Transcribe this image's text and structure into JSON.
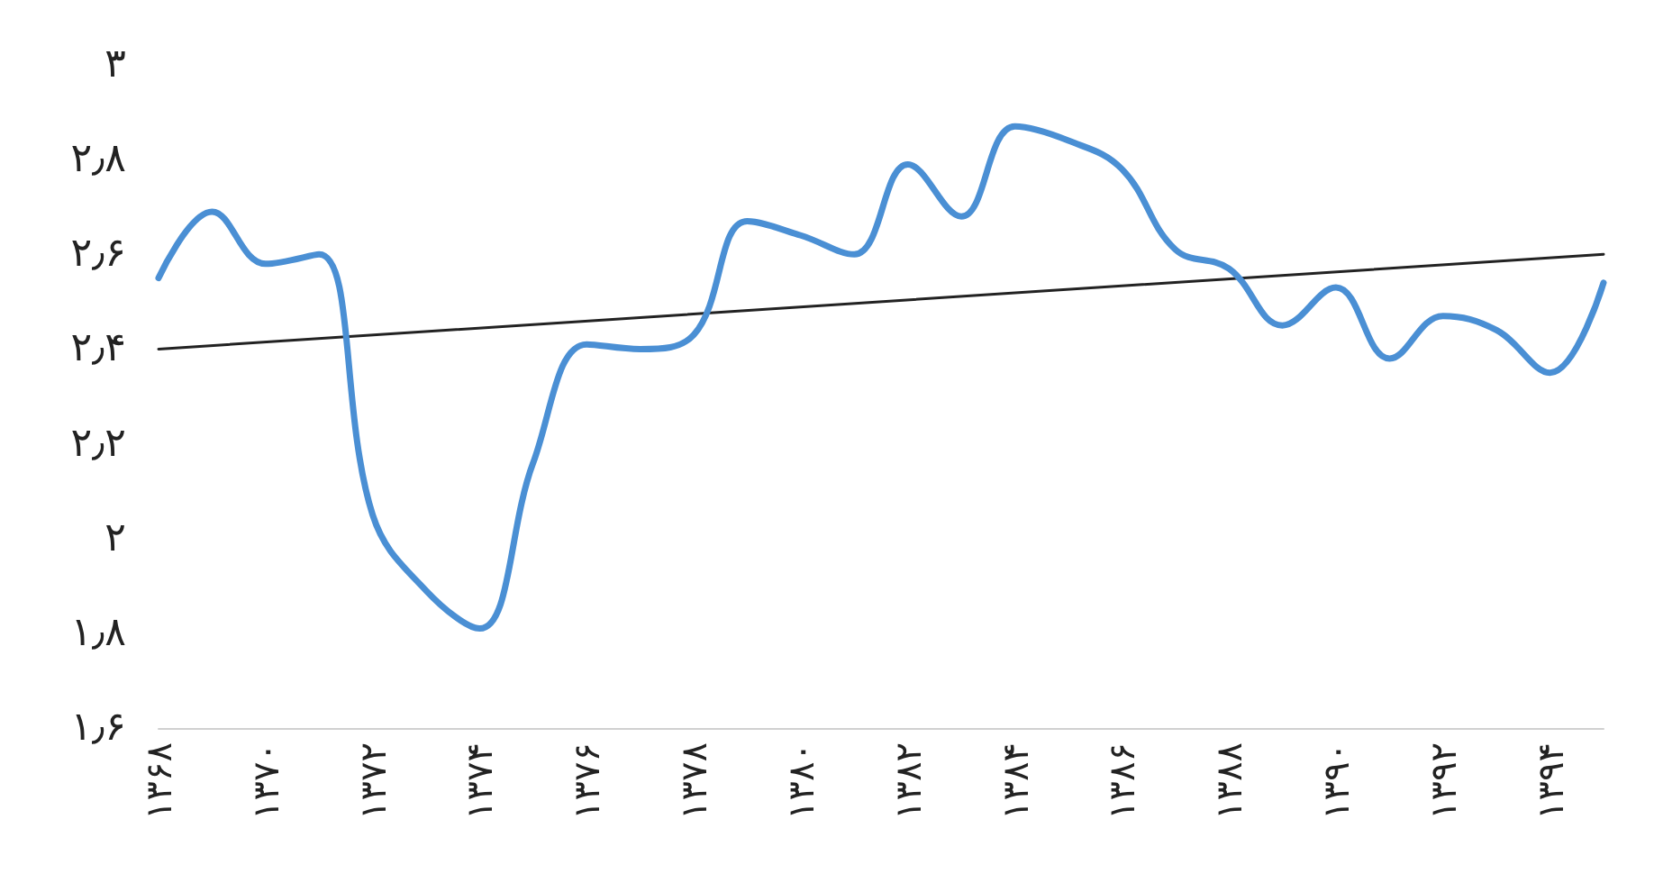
{
  "chart_data": {
    "type": "line",
    "x": [
      1368,
      1369,
      1370,
      1371,
      1372,
      1373,
      1374,
      1375,
      1376,
      1377,
      1378,
      1379,
      1380,
      1381,
      1382,
      1383,
      1384,
      1385,
      1386,
      1387,
      1388,
      1389,
      1390,
      1391,
      1392,
      1393,
      1394,
      1395
    ],
    "series": [
      {
        "color": "#4a8fd4",
        "values": [
          2.55,
          2.69,
          2.58,
          2.6,
          2.05,
          1.89,
          1.81,
          2.16,
          2.41,
          2.4,
          2.43,
          2.67,
          2.64,
          2.6,
          2.79,
          2.68,
          2.87,
          2.84,
          2.78,
          2.61,
          2.57,
          2.45,
          2.53,
          2.38,
          2.47,
          2.44,
          2.35,
          2.54
        ]
      },
      {
        "type": "line",
        "color": "#222222",
        "x": [
          1368,
          1395
        ],
        "values": [
          2.4,
          2.6
        ]
      }
    ],
    "xlim": [
      1368,
      1395
    ],
    "xticks": [
      {
        "value": 1368,
        "label": "۱۳۶۸"
      },
      {
        "value": 1370,
        "label": "۱۳۷۰"
      },
      {
        "value": 1372,
        "label": "۱۳۷۲"
      },
      {
        "value": 1374,
        "label": "۱۳۷۴"
      },
      {
        "value": 1376,
        "label": "۱۳۷۶"
      },
      {
        "value": 1378,
        "label": "۱۳۷۸"
      },
      {
        "value": 1380,
        "label": "۱۳۸۰"
      },
      {
        "value": 1382,
        "label": "۱۳۸۲"
      },
      {
        "value": 1384,
        "label": "۱۳۸۴"
      },
      {
        "value": 1386,
        "label": "۱۳۸۶"
      },
      {
        "value": 1388,
        "label": "۱۳۸۸"
      },
      {
        "value": 1390,
        "label": "۱۳۹۰"
      },
      {
        "value": 1392,
        "label": "۱۳۹۲"
      },
      {
        "value": 1394,
        "label": "۱۳۹۴"
      }
    ],
    "ylim": [
      1.6,
      3
    ],
    "yticks": [
      {
        "value": 1.6,
        "label": "۱٫۶"
      },
      {
        "value": 1.8,
        "label": "۱٫۸"
      },
      {
        "value": 2,
        "label": "۲"
      },
      {
        "value": 2.2,
        "label": "۲٫۲"
      },
      {
        "value": 2.4,
        "label": "۲٫۴"
      },
      {
        "value": 2.6,
        "label": "۲٫۶"
      },
      {
        "value": 2.8,
        "label": "۲٫۸"
      },
      {
        "value": 3,
        "label": "۳"
      }
    ],
    "grid": false,
    "marker": "none"
  }
}
